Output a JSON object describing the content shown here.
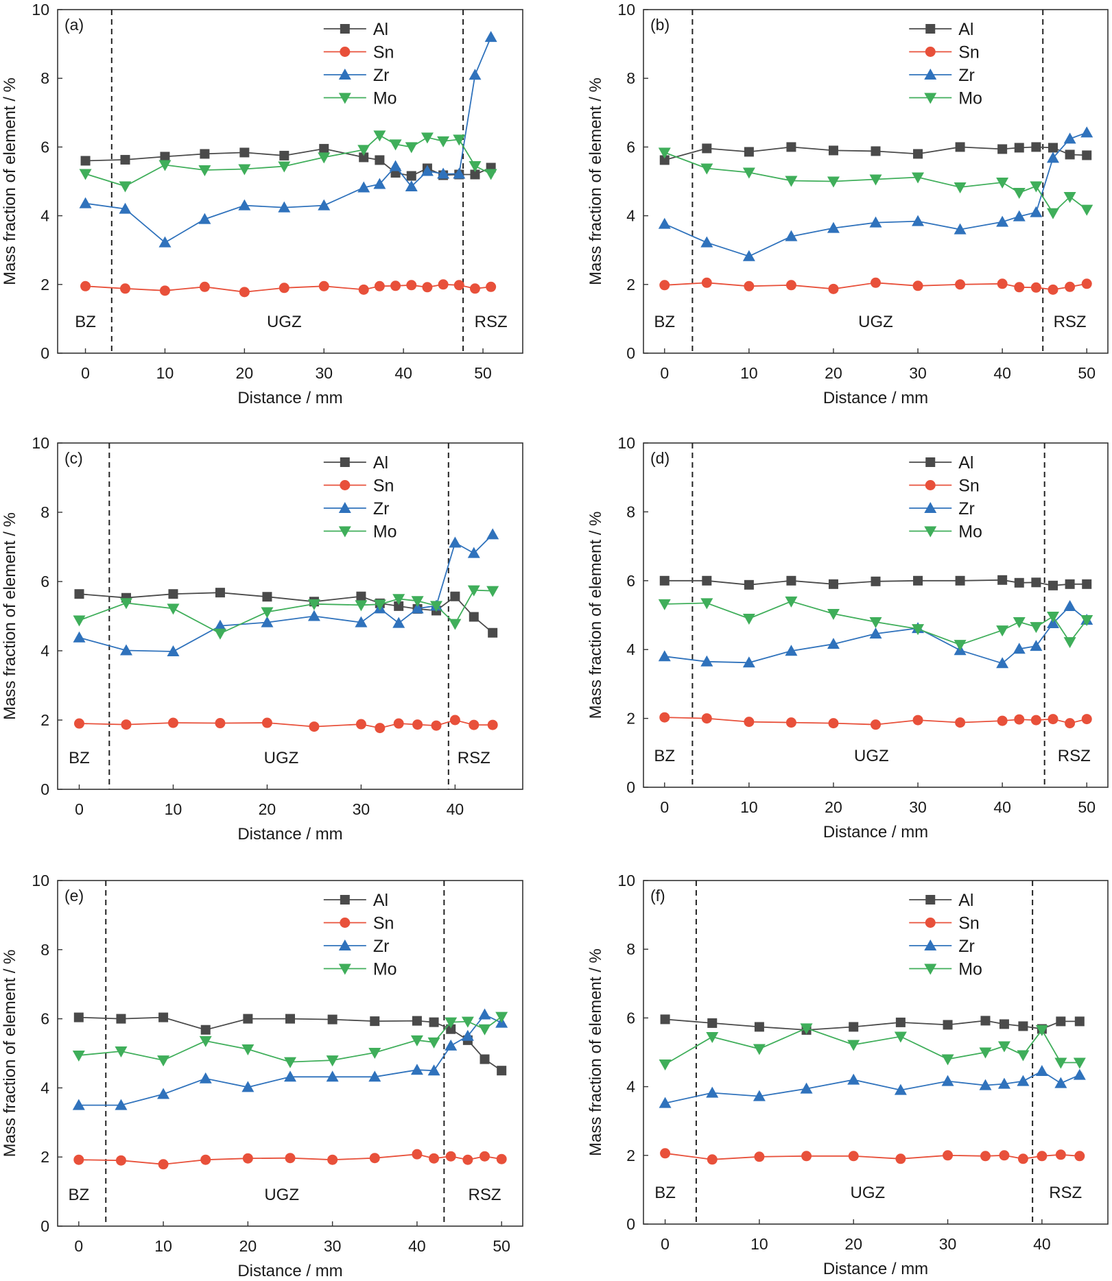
{
  "series_styles": {
    "Al": {
      "color": "#4a4a4a",
      "marker": "square"
    },
    "Sn": {
      "color": "#e8503a",
      "marker": "circle"
    },
    "Zr": {
      "color": "#2f72bc",
      "marker": "triangle-up"
    },
    "Mo": {
      "color": "#3fae5a",
      "marker": "triangle-down"
    }
  },
  "legend_position": "top-right",
  "zone_divider_style": "dashed",
  "chart_data": [
    {
      "panel": "(a)",
      "type": "line",
      "xlabel": "Distance / mm",
      "ylabel": "Mass fraction of element / %",
      "xlim": [
        -3.5,
        55
      ],
      "ylim": [
        0,
        10
      ],
      "xticks": [
        "0",
        "10",
        "20",
        "30",
        "40",
        "50"
      ],
      "yticks": [
        "0",
        "2",
        "4",
        "6",
        "8",
        "10"
      ],
      "dividers": [
        3.3,
        47.5
      ],
      "zones": [
        "BZ",
        "UGZ",
        "RSZ"
      ],
      "zone_x": [
        0,
        25,
        51
      ],
      "x": [
        0,
        5,
        10,
        15,
        20,
        25,
        30,
        35,
        37,
        39,
        41,
        43,
        45,
        47,
        49,
        51
      ],
      "series": [
        {
          "name": "Al",
          "values": [
            5.6,
            5.63,
            5.72,
            5.8,
            5.84,
            5.75,
            5.95,
            5.7,
            5.62,
            5.25,
            5.16,
            5.38,
            5.18,
            5.2,
            5.2,
            5.4
          ]
        },
        {
          "name": "Sn",
          "values": [
            1.95,
            1.88,
            1.82,
            1.93,
            1.78,
            1.9,
            1.95,
            1.85,
            1.95,
            1.96,
            1.98,
            1.92,
            2.0,
            1.98,
            1.88,
            1.93
          ]
        },
        {
          "name": "Zr",
          "values": [
            4.36,
            4.2,
            3.22,
            3.9,
            4.3,
            4.24,
            4.3,
            4.82,
            4.92,
            5.44,
            4.85,
            5.3,
            5.22,
            5.22,
            8.1,
            9.2
          ]
        },
        {
          "name": "Mo",
          "values": [
            5.22,
            4.86,
            5.48,
            5.33,
            5.36,
            5.44,
            5.7,
            5.92,
            6.34,
            6.08,
            6.0,
            6.28,
            6.17,
            6.22,
            5.45,
            5.22
          ]
        }
      ]
    },
    {
      "panel": "(b)",
      "type": "line",
      "xlabel": "Distance / mm",
      "ylabel": "Mass fraction of element / %",
      "xlim": [
        -2.5,
        52.5
      ],
      "ylim": [
        0,
        10
      ],
      "xticks": [
        "0",
        "10",
        "20",
        "30",
        "40",
        "50"
      ],
      "yticks": [
        "0",
        "2",
        "4",
        "6",
        "8",
        "10"
      ],
      "dividers": [
        3.3,
        44.8
      ],
      "zones": [
        "BZ",
        "UGZ",
        "RSZ"
      ],
      "zone_x": [
        0,
        25,
        48
      ],
      "x": [
        0,
        5,
        10,
        15,
        20,
        25,
        30,
        35,
        40,
        42,
        44,
        46,
        48,
        50
      ],
      "series": [
        {
          "name": "Al",
          "values": [
            5.62,
            5.96,
            5.86,
            6.0,
            5.9,
            5.88,
            5.8,
            6.0,
            5.94,
            5.98,
            6.0,
            5.98,
            5.78,
            5.76
          ]
        },
        {
          "name": "Sn",
          "values": [
            1.98,
            2.05,
            1.95,
            1.98,
            1.87,
            2.05,
            1.96,
            2.0,
            2.02,
            1.92,
            1.91,
            1.85,
            1.93,
            2.02
          ]
        },
        {
          "name": "Zr",
          "values": [
            3.76,
            3.22,
            2.82,
            3.4,
            3.64,
            3.8,
            3.84,
            3.6,
            3.82,
            3.98,
            4.1,
            5.68,
            6.24,
            6.42
          ]
        },
        {
          "name": "Mo",
          "values": [
            5.84,
            5.38,
            5.26,
            5.02,
            5.0,
            5.06,
            5.12,
            4.83,
            4.97,
            4.67,
            4.86,
            4.08,
            4.55,
            4.18
          ]
        }
      ]
    },
    {
      "panel": "(c)",
      "type": "line",
      "xlabel": "Distance / mm",
      "ylabel": "Mass fraction of element / %",
      "xlim": [
        -2.3,
        47.2
      ],
      "ylim": [
        0,
        10
      ],
      "xticks": [
        "0",
        "10",
        "20",
        "30",
        "40"
      ],
      "yticks": [
        "0",
        "2",
        "4",
        "6",
        "8",
        "10"
      ],
      "dividers": [
        3.2,
        39.3
      ],
      "zones": [
        "BZ",
        "UGZ",
        "RSZ"
      ],
      "zone_x": [
        0,
        21.5,
        42
      ],
      "x": [
        0,
        5,
        10,
        15,
        20,
        25,
        30,
        32,
        34,
        36,
        38,
        40,
        42,
        44
      ],
      "series": [
        {
          "name": "Al",
          "values": [
            5.64,
            5.53,
            5.64,
            5.68,
            5.56,
            5.42,
            5.57,
            5.37,
            5.29,
            5.21,
            5.16,
            5.57,
            4.98,
            4.52
          ]
        },
        {
          "name": "Sn",
          "values": [
            1.9,
            1.87,
            1.92,
            1.91,
            1.92,
            1.81,
            1.88,
            1.77,
            1.9,
            1.87,
            1.84,
            2.0,
            1.86,
            1.86
          ]
        },
        {
          "name": "Zr",
          "values": [
            4.38,
            4.01,
            3.98,
            4.72,
            4.82,
            5.0,
            4.82,
            5.22,
            4.8,
            5.22,
            5.3,
            7.12,
            6.82,
            7.36
          ]
        },
        {
          "name": "Mo",
          "values": [
            4.88,
            5.38,
            5.22,
            4.5,
            5.12,
            5.35,
            5.32,
            5.34,
            5.5,
            5.44,
            5.3,
            4.78,
            5.75,
            5.73
          ]
        }
      ]
    },
    {
      "panel": "(d)",
      "type": "line",
      "xlabel": "Distance / mm",
      "ylabel": "Mass fraction of element / %",
      "xlim": [
        -2.5,
        52.5
      ],
      "ylim": [
        0,
        10
      ],
      "xticks": [
        "0",
        "10",
        "20",
        "30",
        "40",
        "50"
      ],
      "yticks": [
        "0",
        "2",
        "4",
        "6",
        "8",
        "10"
      ],
      "dividers": [
        3.3,
        45.0
      ],
      "zones": [
        "BZ",
        "UGZ",
        "RSZ"
      ],
      "zone_x": [
        0,
        24.5,
        48.5
      ],
      "x": [
        0,
        5,
        10,
        15,
        20,
        25,
        30,
        35,
        40,
        42,
        44,
        46,
        48,
        50
      ],
      "series": [
        {
          "name": "Al",
          "values": [
            6.0,
            6.0,
            5.88,
            6.0,
            5.9,
            5.98,
            6.0,
            6.0,
            6.02,
            5.94,
            5.95,
            5.86,
            5.9,
            5.9
          ]
        },
        {
          "name": "Sn",
          "values": [
            2.03,
            2.0,
            1.9,
            1.88,
            1.86,
            1.82,
            1.95,
            1.88,
            1.93,
            1.97,
            1.95,
            1.98,
            1.86,
            1.98
          ]
        },
        {
          "name": "Zr",
          "values": [
            3.8,
            3.65,
            3.62,
            3.96,
            4.16,
            4.46,
            4.62,
            3.98,
            3.6,
            4.02,
            4.1,
            4.76,
            5.26,
            4.86
          ]
        },
        {
          "name": "Mo",
          "values": [
            5.32,
            5.35,
            4.9,
            5.4,
            5.04,
            4.8,
            4.6,
            4.14,
            4.56,
            4.8,
            4.66,
            4.96,
            4.22,
            4.86
          ]
        }
      ]
    },
    {
      "panel": "(e)",
      "type": "line",
      "xlabel": "Distance / mm",
      "ylabel": "Mass fraction of element / %",
      "xlim": [
        -2.5,
        52.5
      ],
      "ylim": [
        0,
        10
      ],
      "xticks": [
        "0",
        "10",
        "20",
        "30",
        "40",
        "50"
      ],
      "yticks": [
        "0",
        "2",
        "4",
        "6",
        "8",
        "10"
      ],
      "dividers": [
        3.2,
        43.2
      ],
      "zones": [
        "BZ",
        "UGZ",
        "RSZ"
      ],
      "zone_x": [
        0,
        24,
        48
      ],
      "x": [
        0,
        5,
        10,
        15,
        20,
        25,
        30,
        35,
        40,
        42,
        44,
        46,
        48,
        50
      ],
      "series": [
        {
          "name": "Al",
          "values": [
            6.04,
            6.0,
            6.04,
            5.68,
            6.0,
            6.0,
            5.98,
            5.93,
            5.94,
            5.9,
            5.7,
            5.38,
            4.83,
            4.5
          ]
        },
        {
          "name": "Sn",
          "values": [
            1.92,
            1.9,
            1.79,
            1.92,
            1.96,
            1.97,
            1.92,
            1.97,
            2.08,
            1.96,
            2.02,
            1.92,
            2.02,
            1.94
          ]
        },
        {
          "name": "Zr",
          "values": [
            3.5,
            3.5,
            3.82,
            4.27,
            4.02,
            4.32,
            4.32,
            4.32,
            4.52,
            4.5,
            5.22,
            5.5,
            6.12,
            5.88
          ]
        },
        {
          "name": "Mo",
          "values": [
            4.94,
            5.06,
            4.8,
            5.36,
            5.12,
            4.75,
            4.8,
            5.02,
            5.38,
            5.32,
            5.9,
            5.92,
            5.7,
            6.06
          ]
        }
      ]
    },
    {
      "panel": "(f)",
      "type": "line",
      "xlabel": "Distance / mm",
      "ylabel": "Mass fraction of element / %",
      "xlim": [
        -2.3,
        47.0
      ],
      "ylim": [
        0,
        10
      ],
      "xticks": [
        "0",
        "10",
        "20",
        "30",
        "40"
      ],
      "yticks": [
        "0",
        "2",
        "4",
        "6",
        "8",
        "10"
      ],
      "dividers": [
        3.3,
        39.0
      ],
      "zones": [
        "BZ",
        "UGZ",
        "RSZ"
      ],
      "zone_x": [
        0,
        21.5,
        42.5
      ],
      "x": [
        0,
        5,
        10,
        15,
        20,
        25,
        30,
        34,
        36,
        38,
        40,
        42,
        44
      ],
      "series": [
        {
          "name": "Al",
          "values": [
            5.96,
            5.85,
            5.74,
            5.65,
            5.74,
            5.87,
            5.8,
            5.92,
            5.82,
            5.76,
            5.68,
            5.9,
            5.9
          ]
        },
        {
          "name": "Sn",
          "values": [
            2.06,
            1.88,
            1.96,
            1.98,
            1.98,
            1.9,
            2.0,
            1.98,
            2.0,
            1.9,
            1.98,
            2.02,
            1.98
          ]
        },
        {
          "name": "Zr",
          "values": [
            3.52,
            3.82,
            3.72,
            3.94,
            4.2,
            3.9,
            4.16,
            4.04,
            4.08,
            4.16,
            4.45,
            4.1,
            4.34
          ]
        },
        {
          "name": "Mo",
          "values": [
            4.65,
            5.45,
            5.1,
            5.7,
            5.22,
            5.46,
            4.8,
            5.0,
            5.18,
            4.92,
            5.65,
            4.7,
            4.7
          ]
        }
      ]
    }
  ]
}
